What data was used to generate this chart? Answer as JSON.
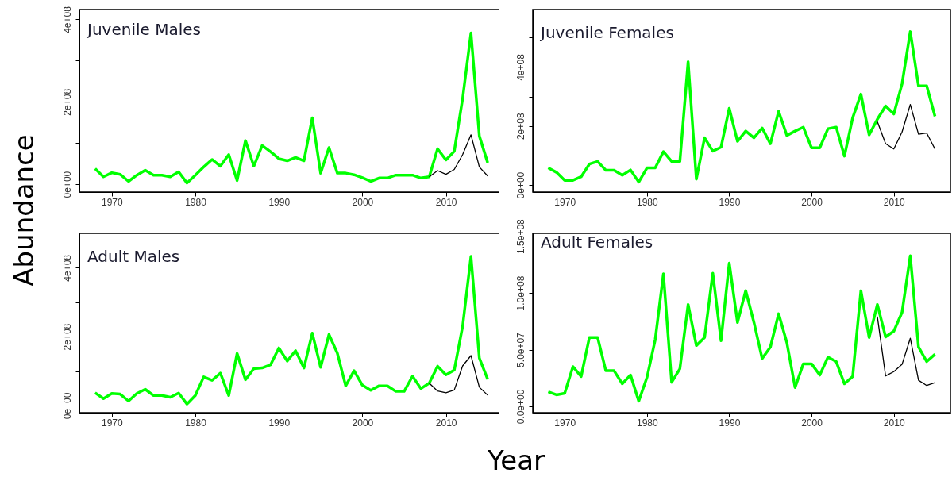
{
  "chart_data": [
    {
      "type": "line",
      "title": "Juvenile Males",
      "ylabel": "Abundance",
      "xlim": [
        1966.12,
        2016.88
      ],
      "xticks": [
        1970,
        1980,
        1990,
        2000,
        2010
      ],
      "ylim": [
        -19000000.0,
        424000000.0
      ],
      "yticks": [
        {
          "value": 0,
          "label": "0e+00"
        },
        {
          "value": 100000000.0,
          "label": null
        },
        {
          "value": 200000000.0,
          "label": "2e+08"
        },
        {
          "value": 300000000.0,
          "label": null
        },
        {
          "value": 400000000.0,
          "label": "4e+08"
        }
      ],
      "series": [
        {
          "color": "#00ff00",
          "x": [
            1968,
            1969,
            1970,
            1971,
            1972,
            1973,
            1974,
            1975,
            1976,
            1977,
            1978,
            1979,
            1980,
            1981,
            1982,
            1983,
            1984,
            1985,
            1986,
            1987,
            1988,
            1989,
            1990,
            1991,
            1992,
            1993,
            1994,
            1995,
            1996,
            1997,
            1998,
            1999,
            2000,
            2001,
            2002,
            2003,
            2004,
            2005,
            2006,
            2007,
            2008,
            2009,
            2010,
            2011,
            2012,
            2013,
            2014,
            2015
          ],
          "values": [
            38000000.0,
            18000000.0,
            28000000.0,
            24000000.0,
            7000000.0,
            22000000.0,
            34000000.0,
            22000000.0,
            22000000.0,
            18000000.0,
            30000000.0,
            3000000.0,
            22000000.0,
            42000000.0,
            60000000.0,
            44000000.0,
            72000000.0,
            9000000.0,
            106000000.0,
            44000000.0,
            94000000.0,
            79000000.0,
            62000000.0,
            57000000.0,
            65000000.0,
            57000000.0,
            161000000.0,
            27000000.0,
            89000000.0,
            27000000.0,
            27000000.0,
            23000000.0,
            16000000.0,
            7000000.0,
            15000000.0,
            15000000.0,
            22000000.0,
            22000000.0,
            22000000.0,
            15000000.0,
            18000000.0,
            86000000.0,
            59000000.0,
            80000000.0,
            208000000.0,
            367000000.0,
            117000000.0,
            52000000.0
          ]
        },
        {
          "color": "#000000",
          "x": [
            2008,
            2009,
            2010,
            2011,
            2012,
            2013,
            2014,
            2015
          ],
          "values": [
            18000000.0,
            33000000.0,
            24000000.0,
            36000000.0,
            72000000.0,
            120000000.0,
            42000000.0,
            20000000.0
          ]
        }
      ]
    },
    {
      "type": "line",
      "title": "Juvenile Females",
      "xlim": [
        1966.12,
        2016.88
      ],
      "xticks": [
        1970,
        1980,
        1990,
        2000,
        2010
      ],
      "ylim": [
        -24000000.0,
        595000000.0
      ],
      "yticks": [
        {
          "value": 0,
          "label": "0e+00"
        },
        {
          "value": 100000000.0,
          "label": null
        },
        {
          "value": 200000000.0,
          "label": "2e+08"
        },
        {
          "value": 300000000.0,
          "label": null
        },
        {
          "value": 400000000.0,
          "label": "4e+08"
        },
        {
          "value": 500000000.0,
          "label": null
        }
      ],
      "series": [
        {
          "color": "#00ff00",
          "x": [
            1968,
            1969,
            1970,
            1971,
            1972,
            1973,
            1974,
            1975,
            1976,
            1977,
            1978,
            1979,
            1980,
            1981,
            1982,
            1983,
            1984,
            1985,
            1986,
            1987,
            1988,
            1989,
            1990,
            1991,
            1992,
            1993,
            1994,
            1995,
            1996,
            1997,
            1998,
            1999,
            2000,
            2001,
            2002,
            2003,
            2004,
            2005,
            2006,
            2007,
            2008,
            2009,
            2010,
            2011,
            2012,
            2013,
            2014,
            2015
          ],
          "values": [
            58000000.0,
            43000000.0,
            16000000.0,
            16000000.0,
            28000000.0,
            71000000.0,
            80000000.0,
            50000000.0,
            50000000.0,
            33000000.0,
            51000000.0,
            10000000.0,
            58000000.0,
            58000000.0,
            113000000.0,
            80000000.0,
            80000000.0,
            418000000.0,
            20000000.0,
            160000000.0,
            115000000.0,
            128000000.0,
            260000000.0,
            148000000.0,
            183000000.0,
            160000000.0,
            193000000.0,
            140000000.0,
            250000000.0,
            168000000.0,
            183000000.0,
            196000000.0,
            126000000.0,
            126000000.0,
            191000000.0,
            196000000.0,
            98000000.0,
            228000000.0,
            308000000.0,
            170000000.0,
            223000000.0,
            268000000.0,
            241000000.0,
            343000000.0,
            520000000.0,
            336000000.0,
            336000000.0,
            233000000.0
          ]
        },
        {
          "color": "#000000",
          "x": [
            2008,
            2009,
            2010,
            2011,
            2012,
            2013,
            2014,
            2015
          ],
          "values": [
            215000000.0,
            140000000.0,
            122000000.0,
            180000000.0,
            273000000.0,
            172000000.0,
            176000000.0,
            122000000.0
          ]
        }
      ]
    },
    {
      "type": "line",
      "title": "Adult Males",
      "xlabel": "Year",
      "xlim": [
        1966.12,
        2016.88
      ],
      "xticks": [
        1970,
        1980,
        1990,
        2000,
        2010
      ],
      "ylim": [
        -21000000.0,
        500000000.0
      ],
      "yticks": [
        {
          "value": 0,
          "label": "0e+00"
        },
        {
          "value": 100000000.0,
          "label": null
        },
        {
          "value": 200000000.0,
          "label": "2e+08"
        },
        {
          "value": 300000000.0,
          "label": null
        },
        {
          "value": 400000000.0,
          "label": "4e+08"
        }
      ],
      "series": [
        {
          "color": "#00ff00",
          "x": [
            1968,
            1969,
            1970,
            1971,
            1972,
            1973,
            1974,
            1975,
            1976,
            1977,
            1978,
            1979,
            1980,
            1981,
            1982,
            1983,
            1984,
            1985,
            1986,
            1987,
            1988,
            1989,
            1990,
            1991,
            1992,
            1993,
            1994,
            1995,
            1996,
            1997,
            1998,
            1999,
            2000,
            2001,
            2002,
            2003,
            2004,
            2005,
            2006,
            2007,
            2008,
            2009,
            2010,
            2011,
            2012,
            2013,
            2014,
            2015
          ],
          "values": [
            37000000.0,
            20000000.0,
            35000000.0,
            33000000.0,
            13000000.0,
            35000000.0,
            47000000.0,
            29000000.0,
            29000000.0,
            24000000.0,
            36000000.0,
            4000000.0,
            29000000.0,
            83000000.0,
            73000000.0,
            94000000.0,
            29000000.0,
            151000000.0,
            75000000.0,
            107000000.0,
            109000000.0,
            118000000.0,
            167000000.0,
            129000000.0,
            159000000.0,
            109000000.0,
            210000000.0,
            111000000.0,
            206000000.0,
            152000000.0,
            57000000.0,
            101000000.0,
            59000000.0,
            44000000.0,
            57000000.0,
            57000000.0,
            41000000.0,
            41000000.0,
            85000000.0,
            49000000.0,
            65000000.0,
            114000000.0,
            89000000.0,
            103000000.0,
            230000000.0,
            433000000.0,
            138000000.0,
            76000000.0
          ]
        },
        {
          "color": "#000000",
          "x": [
            2008,
            2009,
            2010,
            2011,
            2012,
            2013,
            2014,
            2015
          ],
          "values": [
            65000000.0,
            42000000.0,
            37000000.0,
            45000000.0,
            115000000.0,
            145000000.0,
            53000000.0,
            30000000.0
          ]
        }
      ]
    },
    {
      "type": "line",
      "title": "Adult Females",
      "xlim": [
        1966.12,
        2016.88
      ],
      "xticks": [
        1970,
        1980,
        1990,
        2000,
        2010
      ],
      "ylim": [
        -5600000.0,
        152500000.0
      ],
      "yticks": [
        {
          "value": 0,
          "label": "0.0e+00"
        },
        {
          "value": 50000000.0,
          "label": "5.0e+07"
        },
        {
          "value": 100000000.0,
          "label": "1.0e+08"
        },
        {
          "value": 150000000.0,
          "label": "1.5e+08"
        }
      ],
      "series": [
        {
          "color": "#00ff00",
          "x": [
            1968,
            1969,
            1970,
            1971,
            1972,
            1973,
            1974,
            1975,
            1976,
            1977,
            1978,
            1979,
            1980,
            1981,
            1982,
            1983,
            1984,
            1985,
            1986,
            1987,
            1988,
            1989,
            1990,
            1991,
            1992,
            1993,
            1994,
            1995,
            1996,
            1997,
            1998,
            1999,
            2000,
            2001,
            2002,
            2003,
            2004,
            2005,
            2006,
            2007,
            2008,
            2009,
            2010,
            2011,
            2012,
            2013,
            2014,
            2015
          ],
          "values": [
            12800000.0,
            10200000.0,
            11500000.0,
            35000000.0,
            26300000.0,
            60700000.0,
            60700000.0,
            31400000.0,
            31400000.0,
            19900000.0,
            27600000.0,
            4600000.0,
            25500000.0,
            58700000.0,
            116800000.0,
            21200000.0,
            33200000.0,
            89800000.0,
            53600000.0,
            60700000.0,
            117300000.0,
            57900000.0,
            126300000.0,
            74000000.0,
            102000000.0,
            74000000.0,
            42100000.0,
            52300000.0,
            81600000.0,
            56100000.0,
            16600000.0,
            37500000.0,
            37500000.0,
            27600000.0,
            43400000.0,
            39500000.0,
            19900000.0,
            26300000.0,
            102000000.0,
            60700000.0,
            89800000.0,
            61200000.0,
            66300000.0,
            82900000.0,
            132700000.0,
            52300000.0,
            39500000.0,
            45900000.0
          ]
        },
        {
          "color": "#000000",
          "x": [
            2008,
            2009,
            2010,
            2011,
            2012,
            2013,
            2014,
            2015
          ],
          "values": [
            79100000.0,
            26800000.0,
            30600000.0,
            37000000.0,
            60000000.0,
            23000000.0,
            18400000.0,
            20900000.0
          ]
        }
      ]
    }
  ]
}
